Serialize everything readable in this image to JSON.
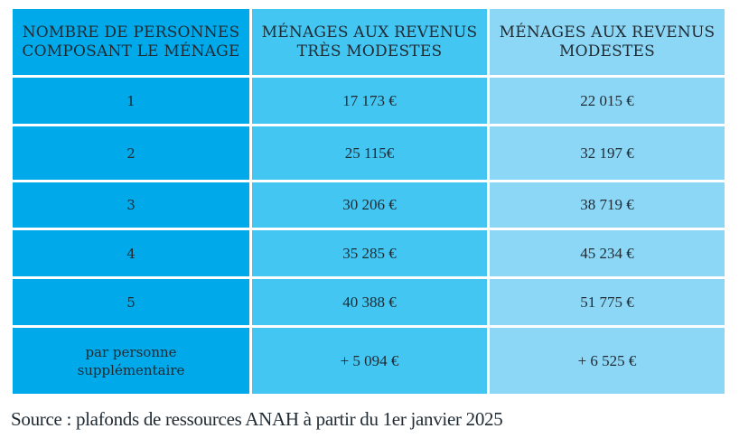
{
  "table": {
    "headers": [
      "NOMBRE DE PERSONNES\nCOMPOSANT LE MÉNAGE",
      "MÉNAGES AUX REVENUS\nTRÈS MODESTES",
      "MÉNAGES AUX REVENUS\nMODESTES"
    ],
    "rows": [
      {
        "persons": "1",
        "tres_modestes": "17 173 €",
        "modestes": "22 015 €"
      },
      {
        "persons": "2",
        "tres_modestes": "25 115€",
        "modestes": "32 197 €"
      },
      {
        "persons": "3",
        "tres_modestes": "30 206 €",
        "modestes": "38 719 €"
      },
      {
        "persons": "4",
        "tres_modestes": "35 285 €",
        "modestes": "45 234 €"
      },
      {
        "persons": "5",
        "tres_modestes": "40 388 €",
        "modestes": "51 775 €"
      },
      {
        "persons": "par personne\nsupplémentaire",
        "tres_modestes": "+ 5 094 €",
        "modestes": "+ 6 525 €"
      }
    ]
  },
  "colors": {
    "column_1": "#00aaea",
    "column_2": "#43c6f2",
    "column_3": "#8dd7f6"
  },
  "source": "Source : plafonds de ressources ANAH à partir du 1er janvier 2025"
}
